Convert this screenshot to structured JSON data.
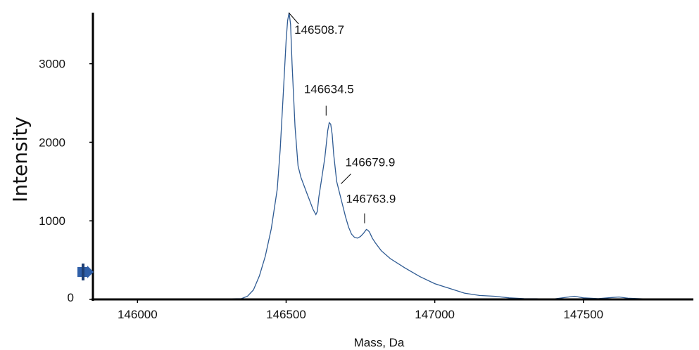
{
  "chart_data": {
    "type": "line",
    "xlabel": "Mass, Da",
    "ylabel": "Intensity",
    "xlim": [
      145850,
      147870
    ],
    "ylim": [
      0,
      3650
    ],
    "x_ticks": [
      146000,
      146500,
      147000,
      147500
    ],
    "y_ticks": [
      0,
      1000,
      2000,
      3000
    ],
    "grid": false,
    "line_color": "#2f5b93",
    "marker_color": "#2f5fa8",
    "series": [
      {
        "x": [
          145850,
          146200,
          146350,
          146370,
          146390,
          146410,
          146430,
          146450,
          146470,
          146480,
          146490,
          146500,
          146505,
          146510,
          146515,
          146520,
          146530,
          146540,
          146550,
          146560,
          146570,
          146580,
          146590,
          146600,
          146605,
          146610,
          146620,
          146630,
          146640,
          146645,
          146650,
          146655,
          146660,
          146670,
          146680,
          146690,
          146700,
          146710,
          146720,
          146730,
          146740,
          146750,
          146760,
          146770,
          146775,
          146780,
          146785,
          146790,
          146800,
          146820,
          146850,
          146900,
          146950,
          147000,
          147050,
          147100,
          147150,
          147200,
          147250,
          147300,
          147350,
          147400,
          147450,
          147470,
          147500,
          147550,
          147600,
          147620,
          147650,
          147700,
          147750,
          147800,
          147870
        ],
        "y": [
          0,
          0,
          10,
          40,
          120,
          300,
          550,
          900,
          1400,
          1900,
          2600,
          3300,
          3550,
          3650,
          3500,
          3000,
          2200,
          1700,
          1550,
          1450,
          1350,
          1250,
          1150,
          1080,
          1120,
          1300,
          1550,
          1800,
          2150,
          2250,
          2230,
          2100,
          1850,
          1500,
          1350,
          1200,
          1050,
          920,
          830,
          790,
          780,
          800,
          840,
          890,
          880,
          860,
          820,
          780,
          720,
          620,
          520,
          400,
          290,
          200,
          140,
          80,
          50,
          40,
          20,
          10,
          8,
          5,
          30,
          40,
          20,
          10,
          25,
          30,
          15,
          8,
          5,
          3,
          0
        ]
      }
    ],
    "annotations": [
      {
        "text": "146508.7",
        "x": 146508.7,
        "y": 3650
      },
      {
        "text": "146634.5",
        "x": 146634.5,
        "y": 2250
      },
      {
        "text": "146679.9",
        "x": 146679.9,
        "y": 1400
      },
      {
        "text": "146763.9",
        "x": 146763.9,
        "y": 880
      }
    ]
  }
}
